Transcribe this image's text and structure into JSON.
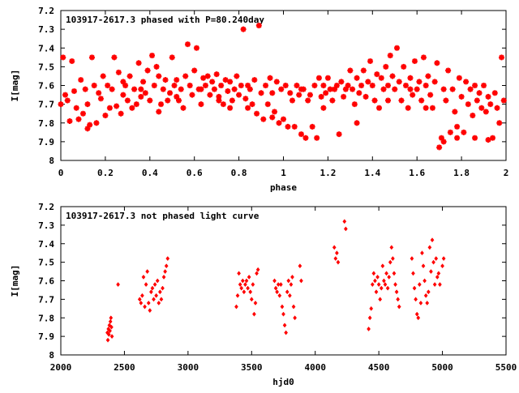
{
  "chart_data": [
    {
      "type": "scatter",
      "title": "103917-2617.3 phased with P=80.240day",
      "xlabel": "phase",
      "ylabel": "I[mag]",
      "xlim": [
        0,
        2
      ],
      "ylim": [
        8,
        7.2
      ],
      "y_inverted": true,
      "grid": false,
      "marker": "star",
      "color": "#ff0000",
      "xticks": [
        "0",
        "0.2",
        "0.4",
        "0.6",
        "0.8",
        "1",
        "1.2",
        "1.4",
        "1.6",
        "1.8",
        "2"
      ],
      "yticks": [
        "7.2",
        "7.3",
        "7.4",
        "7.5",
        "7.6",
        "7.7",
        "7.8",
        "7.9",
        "8"
      ],
      "points": [
        [
          0.0,
          7.7
        ],
        [
          0.01,
          7.45
        ],
        [
          0.02,
          7.65
        ],
        [
          0.03,
          7.68
        ],
        [
          0.04,
          7.79
        ],
        [
          0.05,
          7.47
        ],
        [
          0.06,
          7.63
        ],
        [
          0.07,
          7.72
        ],
        [
          0.08,
          7.78
        ],
        [
          0.09,
          7.57
        ],
        [
          0.1,
          7.75
        ],
        [
          0.11,
          7.62
        ],
        [
          0.12,
          7.7
        ],
        [
          0.13,
          7.81
        ],
        [
          0.14,
          7.45
        ],
        [
          0.15,
          7.6
        ],
        [
          0.16,
          7.8
        ],
        [
          0.17,
          7.64
        ],
        [
          0.18,
          7.67
        ],
        [
          0.19,
          7.55
        ],
        [
          0.2,
          7.76
        ],
        [
          0.21,
          7.6
        ],
        [
          0.22,
          7.72
        ],
        [
          0.23,
          7.62
        ],
        [
          0.24,
          7.45
        ],
        [
          0.25,
          7.71
        ],
        [
          0.26,
          7.53
        ],
        [
          0.27,
          7.75
        ],
        [
          0.28,
          7.65
        ],
        [
          0.29,
          7.6
        ],
        [
          0.3,
          7.68
        ],
        [
          0.31,
          7.55
        ],
        [
          0.32,
          7.72
        ],
        [
          0.33,
          7.62
        ],
        [
          0.34,
          7.7
        ],
        [
          0.35,
          7.48
        ],
        [
          0.36,
          7.66
        ],
        [
          0.37,
          7.58
        ],
        [
          0.38,
          7.64
        ],
        [
          0.39,
          7.52
        ],
        [
          0.4,
          7.68
        ],
        [
          0.41,
          7.44
        ],
        [
          0.42,
          7.6
        ],
        [
          0.43,
          7.5
        ],
        [
          0.44,
          7.55
        ],
        [
          0.45,
          7.7
        ],
        [
          0.46,
          7.62
        ],
        [
          0.47,
          7.57
        ],
        [
          0.48,
          7.68
        ],
        [
          0.49,
          7.64
        ],
        [
          0.5,
          7.45
        ],
        [
          0.51,
          7.6
        ],
        [
          0.52,
          7.57
        ],
        [
          0.53,
          7.68
        ],
        [
          0.54,
          7.62
        ],
        [
          0.55,
          7.72
        ],
        [
          0.56,
          7.55
        ],
        [
          0.57,
          7.38
        ],
        [
          0.58,
          7.6
        ],
        [
          0.59,
          7.65
        ],
        [
          0.6,
          7.52
        ],
        [
          0.61,
          7.4
        ],
        [
          0.62,
          7.62
        ],
        [
          0.63,
          7.7
        ],
        [
          0.64,
          7.56
        ],
        [
          0.65,
          7.6
        ],
        [
          0.66,
          7.55
        ],
        [
          0.67,
          7.65
        ],
        [
          0.68,
          7.58
        ],
        [
          0.69,
          7.62
        ],
        [
          0.7,
          7.54
        ],
        [
          0.71,
          7.66
        ],
        [
          0.72,
          7.6
        ],
        [
          0.73,
          7.7
        ],
        [
          0.74,
          7.57
        ],
        [
          0.75,
          7.63
        ],
        [
          0.76,
          7.58
        ],
        [
          0.77,
          7.68
        ],
        [
          0.78,
          7.62
        ],
        [
          0.79,
          7.55
        ],
        [
          0.8,
          7.65
        ],
        [
          0.81,
          7.6
        ],
        [
          0.82,
          7.3
        ],
        [
          0.83,
          7.67
        ],
        [
          0.84,
          7.72
        ],
        [
          0.85,
          7.62
        ],
        [
          0.86,
          7.7
        ],
        [
          0.87,
          7.57
        ],
        [
          0.88,
          7.75
        ],
        [
          0.89,
          7.28
        ],
        [
          0.9,
          7.64
        ],
        [
          0.91,
          7.78
        ],
        [
          0.92,
          7.6
        ],
        [
          0.93,
          7.7
        ],
        [
          0.94,
          7.56
        ],
        [
          0.95,
          7.64
        ],
        [
          0.96,
          7.74
        ],
        [
          0.97,
          7.58
        ],
        [
          0.98,
          7.8
        ],
        [
          0.99,
          7.62
        ],
        [
          1.0,
          7.78
        ],
        [
          1.01,
          7.6
        ],
        [
          1.02,
          7.82
        ],
        [
          1.03,
          7.64
        ],
        [
          1.04,
          7.68
        ],
        [
          1.05,
          7.82
        ],
        [
          1.06,
          7.6
        ],
        [
          1.07,
          7.65
        ],
        [
          1.08,
          7.86
        ],
        [
          1.09,
          7.62
        ],
        [
          1.1,
          7.88
        ],
        [
          1.11,
          7.68
        ],
        [
          1.12,
          7.65
        ],
        [
          1.13,
          7.82
        ],
        [
          1.14,
          7.6
        ],
        [
          1.15,
          7.88
        ],
        [
          1.16,
          7.56
        ],
        [
          1.17,
          7.66
        ],
        [
          1.18,
          7.6
        ],
        [
          1.19,
          7.64
        ],
        [
          1.2,
          7.56
        ],
        [
          1.21,
          7.62
        ],
        [
          1.22,
          7.68
        ],
        [
          1.23,
          7.62
        ],
        [
          1.24,
          7.6
        ],
        [
          1.25,
          7.86
        ],
        [
          1.26,
          7.58
        ],
        [
          1.27,
          7.66
        ],
        [
          1.28,
          7.62
        ],
        [
          1.29,
          7.6
        ],
        [
          1.3,
          7.52
        ],
        [
          1.31,
          7.62
        ],
        [
          1.32,
          7.7
        ],
        [
          1.33,
          7.56
        ],
        [
          1.34,
          7.64
        ],
        [
          1.35,
          7.6
        ],
        [
          1.36,
          7.52
        ],
        [
          1.37,
          7.66
        ],
        [
          1.38,
          7.58
        ],
        [
          1.39,
          7.47
        ],
        [
          1.4,
          7.6
        ],
        [
          1.41,
          7.68
        ],
        [
          1.42,
          7.54
        ],
        [
          1.43,
          7.72
        ],
        [
          1.44,
          7.56
        ],
        [
          1.45,
          7.62
        ],
        [
          1.46,
          7.5
        ],
        [
          1.47,
          7.68
        ],
        [
          1.48,
          7.44
        ],
        [
          1.49,
          7.55
        ],
        [
          1.5,
          7.62
        ],
        [
          1.51,
          7.4
        ],
        [
          1.52,
          7.58
        ],
        [
          1.53,
          7.68
        ],
        [
          1.54,
          7.5
        ],
        [
          1.55,
          7.6
        ],
        [
          1.56,
          7.72
        ],
        [
          1.57,
          7.56
        ],
        [
          1.58,
          7.65
        ],
        [
          1.59,
          7.47
        ],
        [
          1.6,
          7.62
        ],
        [
          1.61,
          7.58
        ],
        [
          1.62,
          7.68
        ],
        [
          1.63,
          7.45
        ],
        [
          1.64,
          7.6
        ],
        [
          1.65,
          7.55
        ],
        [
          1.66,
          7.65
        ],
        [
          1.67,
          7.72
        ],
        [
          1.68,
          7.58
        ],
        [
          1.69,
          7.48
        ],
        [
          1.7,
          7.93
        ],
        [
          1.71,
          7.88
        ],
        [
          1.72,
          7.62
        ],
        [
          1.73,
          7.68
        ],
        [
          1.74,
          7.52
        ],
        [
          1.75,
          7.85
        ],
        [
          1.76,
          7.62
        ],
        [
          1.77,
          7.74
        ],
        [
          1.78,
          7.88
        ],
        [
          1.79,
          7.56
        ],
        [
          1.8,
          7.66
        ],
        [
          1.81,
          7.85
        ],
        [
          1.82,
          7.58
        ],
        [
          1.83,
          7.7
        ],
        [
          1.84,
          7.62
        ],
        [
          1.85,
          7.76
        ],
        [
          1.86,
          7.6
        ],
        [
          1.87,
          7.68
        ],
        [
          1.88,
          7.64
        ],
        [
          1.89,
          7.72
        ],
        [
          1.9,
          7.6
        ],
        [
          1.91,
          7.74
        ],
        [
          1.92,
          7.66
        ],
        [
          1.93,
          7.7
        ],
        [
          1.94,
          7.88
        ],
        [
          1.95,
          7.64
        ],
        [
          1.96,
          7.72
        ],
        [
          1.97,
          7.8
        ],
        [
          1.98,
          7.45
        ],
        [
          1.99,
          7.68
        ],
        [
          0.12,
          7.83
        ],
        [
          0.28,
          7.58
        ],
        [
          0.36,
          7.62
        ],
        [
          0.44,
          7.74
        ],
        [
          0.52,
          7.66
        ],
        [
          0.63,
          7.62
        ],
        [
          0.71,
          7.68
        ],
        [
          0.76,
          7.72
        ],
        [
          0.84,
          7.6
        ],
        [
          0.95,
          7.77
        ],
        [
          1.08,
          7.62
        ],
        [
          1.18,
          7.72
        ],
        [
          1.33,
          7.8
        ],
        [
          1.47,
          7.6
        ],
        [
          1.57,
          7.62
        ],
        [
          1.64,
          7.72
        ],
        [
          1.72,
          7.9
        ],
        [
          1.78,
          7.82
        ],
        [
          1.86,
          7.88
        ],
        [
          1.92,
          7.89
        ]
      ]
    },
    {
      "type": "scatter",
      "title": "103917-2617.3 not phased light curve",
      "xlabel": "hjd0",
      "ylabel": "I[mag]",
      "xlim": [
        2000,
        5500
      ],
      "ylim": [
        8,
        7.2
      ],
      "y_inverted": true,
      "grid": false,
      "marker": "diamond",
      "color": "#ff0000",
      "xticks": [
        "2000",
        "2500",
        "3000",
        "3500",
        "4000",
        "4500",
        "5000",
        "5500"
      ],
      "yticks": [
        "7.2",
        "7.3",
        "7.4",
        "7.5",
        "7.6",
        "7.7",
        "7.8",
        "7.9",
        "8"
      ],
      "points": [
        [
          2366,
          7.88
        ],
        [
          2370,
          7.92
        ],
        [
          2374,
          7.86
        ],
        [
          2378,
          7.89
        ],
        [
          2382,
          7.84
        ],
        [
          2386,
          7.87
        ],
        [
          2390,
          7.82
        ],
        [
          2394,
          7.8
        ],
        [
          2398,
          7.85
        ],
        [
          2402,
          7.9
        ],
        [
          2450,
          7.62
        ],
        [
          2620,
          7.7
        ],
        [
          2630,
          7.72
        ],
        [
          2640,
          7.68
        ],
        [
          2650,
          7.58
        ],
        [
          2660,
          7.74
        ],
        [
          2670,
          7.62
        ],
        [
          2680,
          7.55
        ],
        [
          2690,
          7.72
        ],
        [
          2700,
          7.76
        ],
        [
          2710,
          7.66
        ],
        [
          2720,
          7.64
        ],
        [
          2730,
          7.7
        ],
        [
          2740,
          7.62
        ],
        [
          2750,
          7.68
        ],
        [
          2760,
          7.6
        ],
        [
          2770,
          7.72
        ],
        [
          2780,
          7.66
        ],
        [
          2790,
          7.7
        ],
        [
          2800,
          7.64
        ],
        [
          2810,
          7.58
        ],
        [
          2820,
          7.55
        ],
        [
          2830,
          7.52
        ],
        [
          2840,
          7.48
        ],
        [
          3380,
          7.74
        ],
        [
          3390,
          7.68
        ],
        [
          3400,
          7.56
        ],
        [
          3410,
          7.62
        ],
        [
          3420,
          7.64
        ],
        [
          3430,
          7.6
        ],
        [
          3440,
          7.66
        ],
        [
          3450,
          7.62
        ],
        [
          3460,
          7.6
        ],
        [
          3470,
          7.64
        ],
        [
          3480,
          7.58
        ],
        [
          3490,
          7.66
        ],
        [
          3500,
          7.7
        ],
        [
          3510,
          7.62
        ],
        [
          3520,
          7.78
        ],
        [
          3530,
          7.72
        ],
        [
          3540,
          7.56
        ],
        [
          3550,
          7.54
        ],
        [
          3680,
          7.6
        ],
        [
          3690,
          7.64
        ],
        [
          3700,
          7.66
        ],
        [
          3710,
          7.62
        ],
        [
          3720,
          7.68
        ],
        [
          3730,
          7.62
        ],
        [
          3740,
          7.74
        ],
        [
          3750,
          7.78
        ],
        [
          3760,
          7.84
        ],
        [
          3770,
          7.88
        ],
        [
          3780,
          7.66
        ],
        [
          3790,
          7.6
        ],
        [
          3800,
          7.68
        ],
        [
          3810,
          7.62
        ],
        [
          3820,
          7.58
        ],
        [
          3830,
          7.74
        ],
        [
          3840,
          7.8
        ],
        [
          3880,
          7.52
        ],
        [
          3890,
          7.6
        ],
        [
          4150,
          7.42
        ],
        [
          4160,
          7.48
        ],
        [
          4170,
          7.45
        ],
        [
          4180,
          7.5
        ],
        [
          4230,
          7.28
        ],
        [
          4240,
          7.32
        ],
        [
          4420,
          7.86
        ],
        [
          4430,
          7.8
        ],
        [
          4440,
          7.75
        ],
        [
          4450,
          7.62
        ],
        [
          4460,
          7.56
        ],
        [
          4470,
          7.6
        ],
        [
          4480,
          7.66
        ],
        [
          4490,
          7.58
        ],
        [
          4500,
          7.62
        ],
        [
          4510,
          7.7
        ],
        [
          4520,
          7.64
        ],
        [
          4530,
          7.52
        ],
        [
          4540,
          7.6
        ],
        [
          4550,
          7.62
        ],
        [
          4560,
          7.56
        ],
        [
          4570,
          7.64
        ],
        [
          4580,
          7.58
        ],
        [
          4590,
          7.5
        ],
        [
          4600,
          7.42
        ],
        [
          4610,
          7.48
        ],
        [
          4620,
          7.56
        ],
        [
          4630,
          7.62
        ],
        [
          4640,
          7.66
        ],
        [
          4650,
          7.7
        ],
        [
          4660,
          7.74
        ],
        [
          4760,
          7.48
        ],
        [
          4770,
          7.56
        ],
        [
          4780,
          7.64
        ],
        [
          4790,
          7.7
        ],
        [
          4800,
          7.78
        ],
        [
          4810,
          7.8
        ],
        [
          4820,
          7.62
        ],
        [
          4830,
          7.72
        ],
        [
          4840,
          7.45
        ],
        [
          4850,
          7.52
        ],
        [
          4860,
          7.6
        ],
        [
          4870,
          7.68
        ],
        [
          4880,
          7.72
        ],
        [
          4890,
          7.66
        ],
        [
          4900,
          7.42
        ],
        [
          4910,
          7.55
        ],
        [
          4920,
          7.38
        ],
        [
          4930,
          7.5
        ],
        [
          4940,
          7.62
        ],
        [
          4950,
          7.48
        ],
        [
          4960,
          7.58
        ],
        [
          4970,
          7.56
        ],
        [
          4980,
          7.62
        ],
        [
          5000,
          7.52
        ],
        [
          5010,
          7.48
        ]
      ]
    }
  ]
}
